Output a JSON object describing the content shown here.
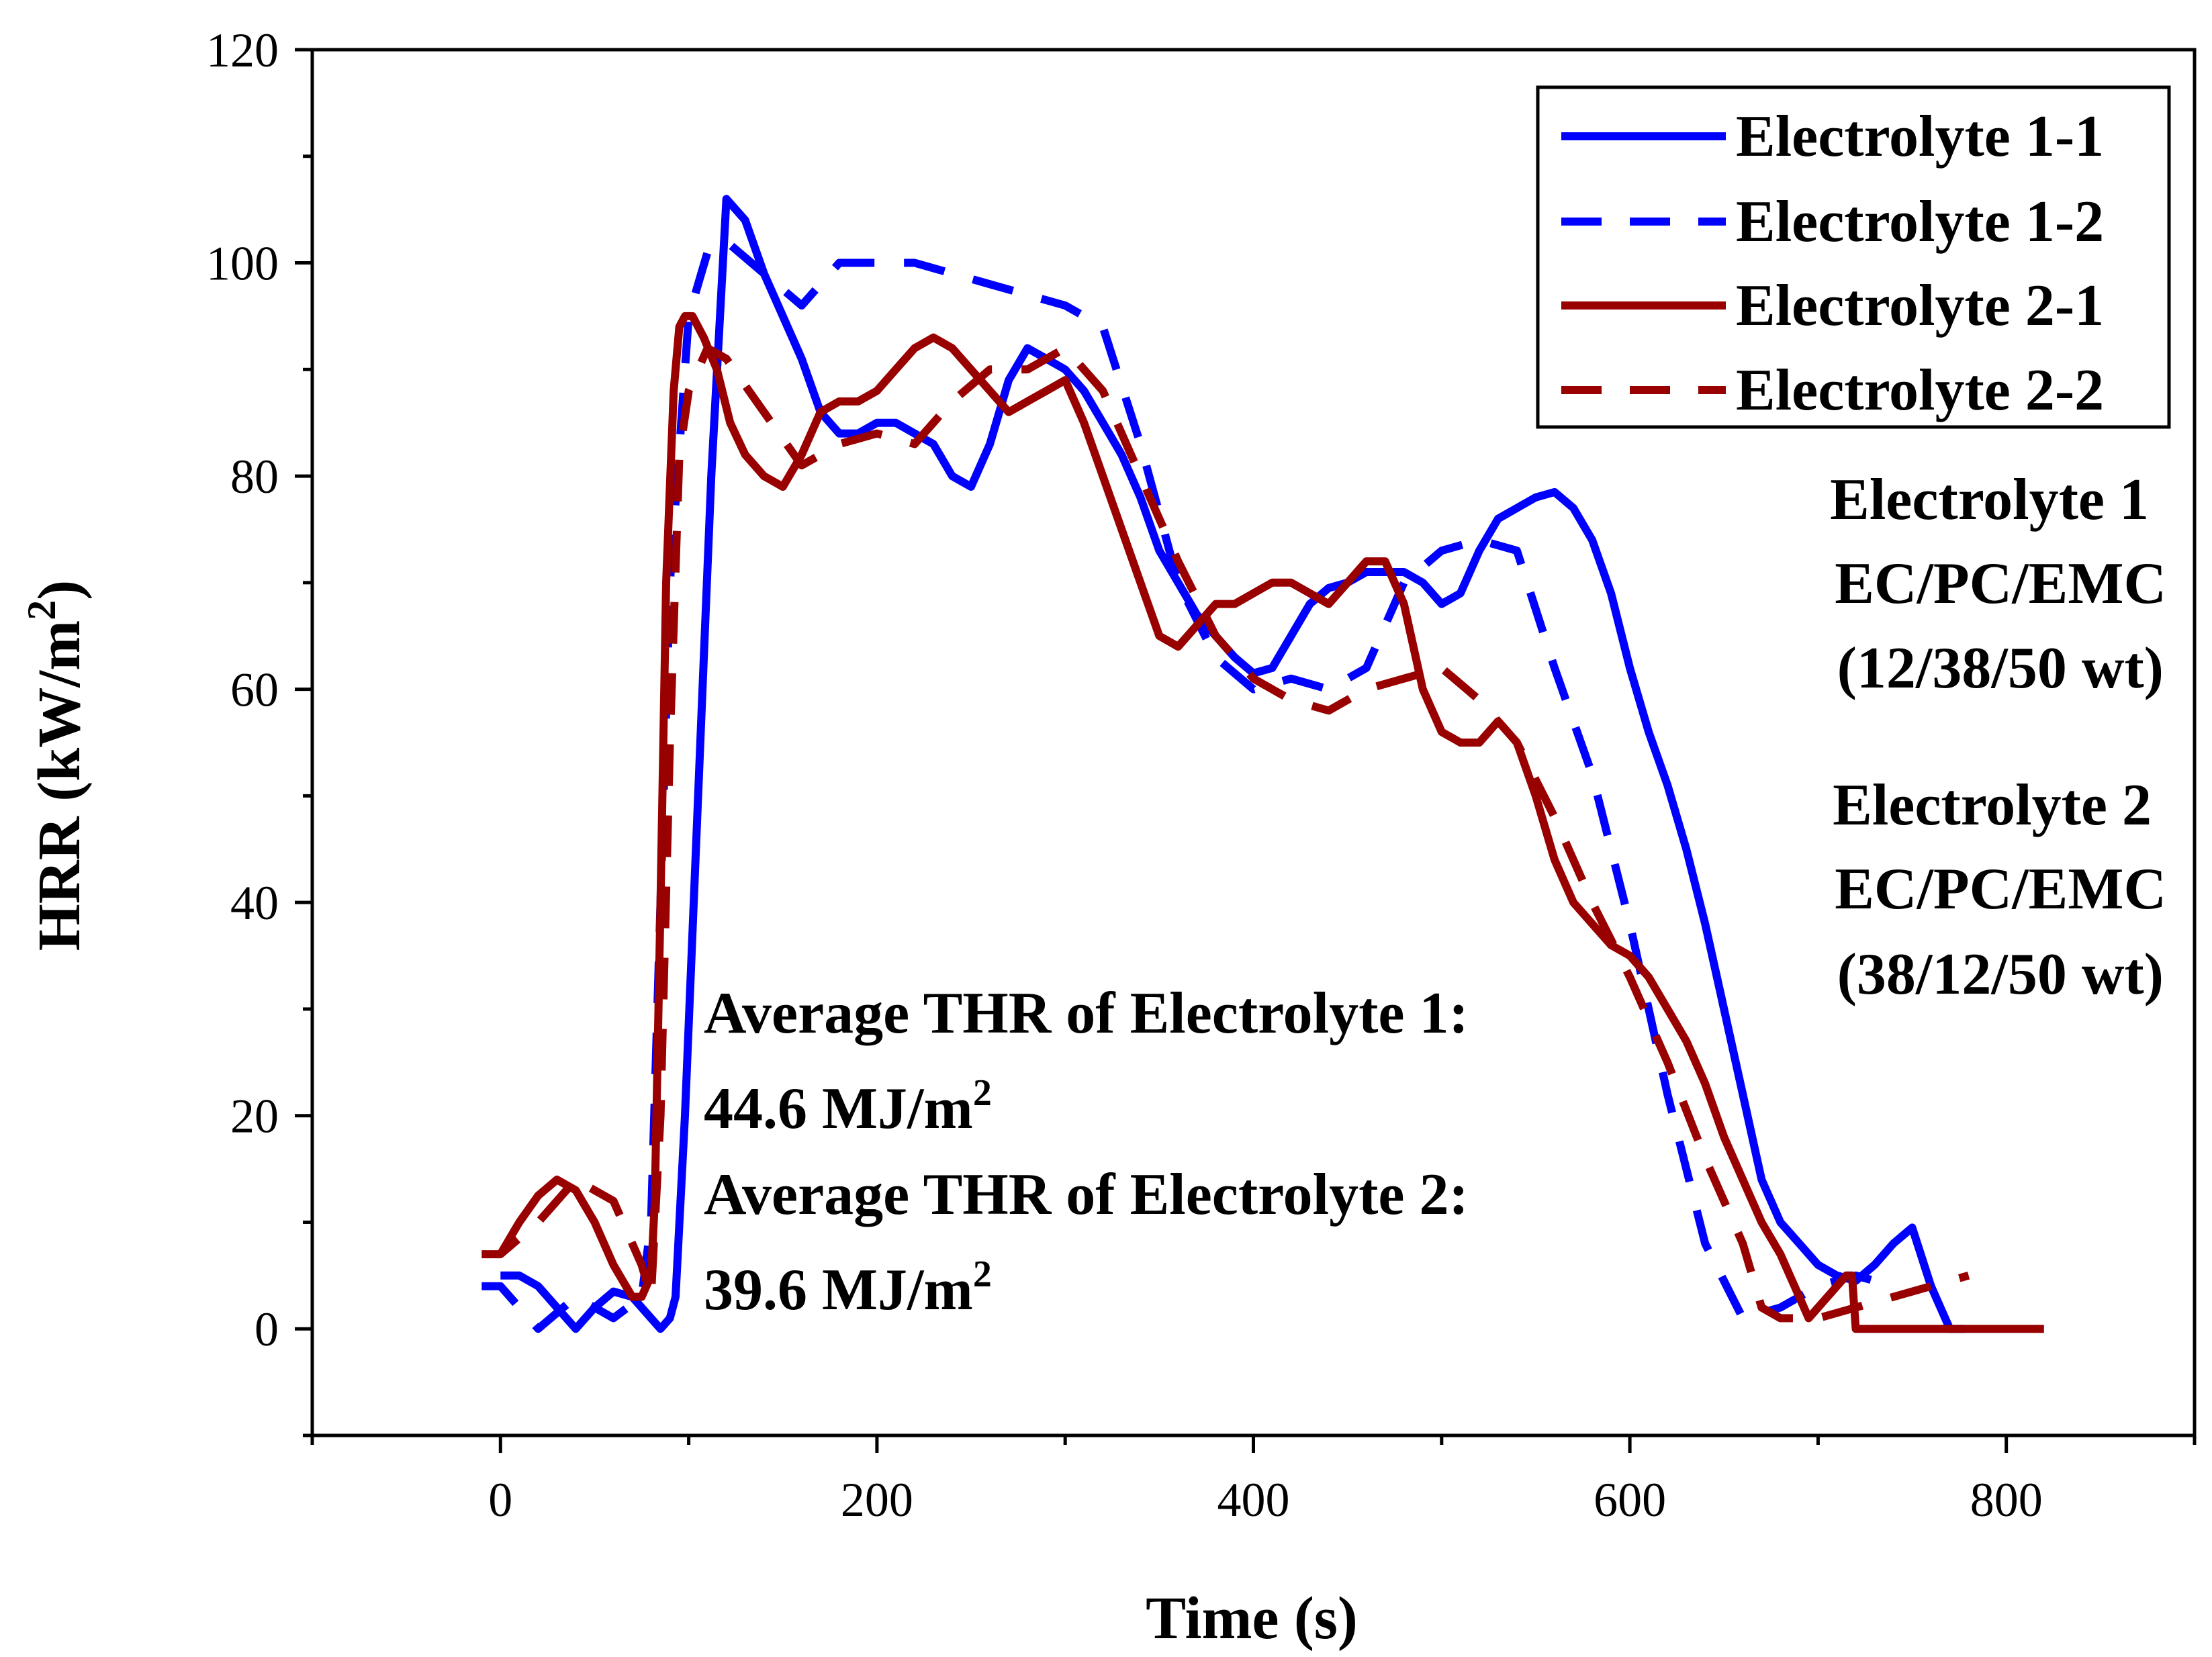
{
  "chart_data": {
    "type": "line",
    "xlabel": "Time (s)",
    "ylabel_main": "HRR (kW/m",
    "ylabel_sup": "2",
    "ylabel_end": ")",
    "xlim": [
      -100,
      900
    ],
    "ylim": [
      -10,
      120
    ],
    "xticks": [
      0,
      200,
      400,
      600,
      800
    ],
    "yticks": [
      0,
      20,
      40,
      60,
      80,
      100,
      120
    ],
    "xtick_labels": [
      "0",
      "200",
      "400",
      "600",
      "800"
    ],
    "ytick_labels": [
      "0",
      "20",
      "40",
      "60",
      "80",
      "100",
      "120"
    ],
    "legend_position": "top-right",
    "series": [
      {
        "name": "Electrolyte 1-1",
        "color": "#0000ff",
        "style": "solid",
        "x": [
          0,
          10,
          20,
          30,
          40,
          50,
          60,
          70,
          80,
          85,
          90,
          93,
          98,
          105,
          112,
          120,
          130,
          140,
          150,
          160,
          170,
          180,
          190,
          200,
          210,
          220,
          230,
          240,
          250,
          260,
          270,
          280,
          290,
          300,
          310,
          320,
          330,
          340,
          350,
          360,
          370,
          380,
          390,
          400,
          410,
          420,
          430,
          440,
          450,
          460,
          470,
          480,
          490,
          500,
          510,
          520,
          530,
          540,
          550,
          560,
          570,
          580,
          590,
          600,
          610,
          620,
          630,
          640,
          650,
          660,
          670,
          680,
          690,
          700,
          710,
          720,
          730,
          740,
          750,
          760,
          770,
          776,
          777,
          778
        ],
        "y": [
          5,
          5,
          4,
          2,
          0,
          2,
          3.5,
          3,
          1,
          0,
          1,
          3,
          20,
          50,
          80,
          106,
          104,
          99,
          95,
          91,
          86,
          84,
          84,
          85,
          85,
          84,
          83,
          80,
          79,
          83,
          89,
          92,
          91,
          90,
          88,
          85,
          82,
          78,
          73,
          70,
          67,
          65,
          63,
          61.5,
          62,
          65,
          68,
          69.5,
          70,
          71,
          71,
          71,
          70,
          68,
          69,
          73,
          76,
          77,
          78,
          78.5,
          77,
          74,
          69,
          62,
          56,
          51,
          45,
          38,
          30,
          22,
          14,
          10,
          8,
          6,
          5,
          4.5,
          6,
          8,
          9.5,
          4,
          0,
          0,
          0,
          0
        ]
      },
      {
        "name": "Electrolyte 1-2",
        "color": "#0000ff",
        "style": "dashed",
        "x": [
          -10,
          0,
          20,
          40,
          60,
          75,
          80,
          85,
          90,
          100,
          110,
          120,
          140,
          160,
          180,
          200,
          220,
          240,
          260,
          280,
          300,
          320,
          340,
          360,
          380,
          400,
          420,
          440,
          460,
          480,
          500,
          520,
          540,
          560,
          580,
          600,
          620,
          640,
          660,
          680,
          700,
          720,
          740
        ],
        "y": [
          4,
          4,
          0,
          3,
          1,
          3,
          10,
          40,
          70,
          95,
          101,
          102,
          99,
          96,
          100,
          100,
          100,
          99,
          98,
          97,
          96,
          94,
          83,
          70,
          63,
          60,
          61,
          60,
          62,
          70,
          73,
          74,
          73,
          62,
          52,
          38,
          22,
          8,
          1,
          2,
          4,
          5,
          4
        ]
      },
      {
        "name": "Electrolyte 2-1",
        "color": "#990000",
        "style": "solid",
        "x": [
          0,
          10,
          20,
          30,
          40,
          50,
          60,
          70,
          75,
          80,
          82,
          85,
          88,
          92,
          95,
          98,
          102,
          108,
          115,
          122,
          130,
          140,
          150,
          160,
          170,
          180,
          190,
          200,
          210,
          220,
          230,
          240,
          250,
          260,
          270,
          280,
          290,
          300,
          310,
          320,
          330,
          340,
          350,
          360,
          370,
          380,
          390,
          400,
          410,
          420,
          430,
          440,
          450,
          460,
          470,
          480,
          490,
          500,
          510,
          520,
          530,
          540,
          550,
          560,
          570,
          580,
          590,
          600,
          610,
          620,
          630,
          640,
          650,
          660,
          670,
          680,
          690,
          695,
          700,
          710,
          715,
          718,
          720,
          730,
          740,
          760,
          780,
          800,
          820
        ],
        "y": [
          7,
          10,
          12.5,
          14,
          13,
          10,
          6,
          3,
          3,
          5,
          12,
          40,
          70,
          88,
          94,
          95,
          95,
          93,
          90,
          85,
          82,
          80,
          79,
          82,
          86,
          87,
          87,
          88,
          90,
          92,
          93,
          92,
          90,
          88,
          86,
          87,
          88,
          89,
          85,
          80,
          75,
          70,
          65,
          64,
          66,
          68,
          68,
          69,
          70,
          70,
          69,
          68,
          70,
          72,
          72,
          68,
          60,
          56,
          55,
          55,
          57,
          55,
          50,
          44,
          40,
          38,
          36,
          35,
          33,
          30,
          27,
          23,
          18,
          14,
          10,
          7,
          3,
          1,
          2,
          4,
          5,
          5,
          0,
          0,
          0,
          0,
          0,
          0,
          0
        ]
      },
      {
        "name": "Electrolyte 2-2",
        "color": "#990000",
        "style": "dashed",
        "x": [
          -10,
          0,
          20,
          40,
          60,
          75,
          80,
          85,
          90,
          95,
          100,
          110,
          120,
          140,
          160,
          180,
          200,
          220,
          240,
          260,
          280,
          300,
          320,
          340,
          360,
          380,
          400,
          420,
          440,
          460,
          480,
          500,
          520,
          540,
          560,
          580,
          600,
          620,
          640,
          660,
          670,
          680,
          700,
          720,
          740,
          760,
          780
        ],
        "y": [
          7,
          7,
          10,
          14,
          12,
          6,
          3,
          20,
          55,
          82,
          88,
          92,
          91,
          86,
          81,
          83,
          84,
          83,
          87,
          90,
          90,
          92,
          88,
          80,
          72,
          65,
          61,
          59,
          58,
          60,
          61,
          62,
          59,
          55,
          48,
          40,
          33,
          25,
          16,
          8,
          2,
          1,
          1,
          2,
          3,
          4,
          5
        ]
      }
    ],
    "annotations": [
      {
        "lines": [
          "Electrolyte 1",
          "EC/PC/EMC",
          "(12/38/50 wt)"
        ]
      },
      {
        "lines": [
          "Electrolyte 2",
          "EC/PC/EMC",
          "(38/12/50 wt)"
        ]
      }
    ],
    "thr_annotation": {
      "line1": "Average THR of  Electrolyte 1:",
      "line2": "44.6 MJ/m",
      "line2_sup": "2",
      "line3": "Average THR of  Electrolyte 2:",
      "line4": "39.6 MJ/m",
      "line4_sup": "2"
    }
  }
}
